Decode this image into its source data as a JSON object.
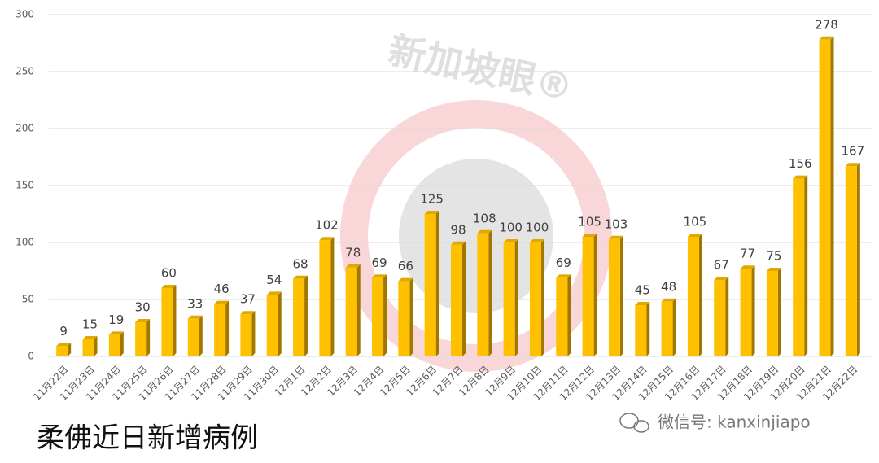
{
  "chart_data": {
    "type": "bar",
    "title": "柔佛近日新增病例",
    "watermark": "新加坡眼®",
    "credit": "微信号: kanxinjiapo",
    "categories": [
      "11月22日",
      "11月23日",
      "11月24日",
      "11月25日",
      "11月26日",
      "11月27日",
      "11月28日",
      "11月29日",
      "11月30日",
      "12月1日",
      "12月2日",
      "12月3日",
      "12月4日",
      "12月5日",
      "12月6日",
      "12月7日",
      "12月8日",
      "12月9日",
      "12月10日",
      "12月11日",
      "12月12日",
      "12月13日",
      "12月14日",
      "12月15日",
      "12月16日",
      "12月17日",
      "12月18日",
      "12月19日",
      "12月20日",
      "12月21日",
      "12月22日"
    ],
    "values": [
      9,
      15,
      19,
      30,
      60,
      33,
      46,
      37,
      54,
      68,
      102,
      78,
      69,
      66,
      125,
      98,
      108,
      100,
      100,
      69,
      105,
      103,
      45,
      48,
      105,
      67,
      77,
      75,
      156,
      278,
      167
    ],
    "color": "#ffc000",
    "ylim": [
      0,
      300
    ],
    "yticks": [
      0,
      50,
      100,
      150,
      200,
      250,
      300
    ],
    "grid": true
  }
}
